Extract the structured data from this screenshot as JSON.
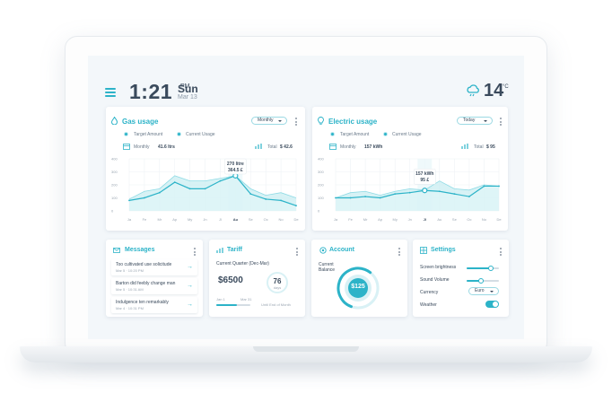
{
  "header": {
    "time": "1:21",
    "ampm": "PM",
    "day": "Sun",
    "date": "Mar 13",
    "temperature": "14",
    "temp_unit": "°C"
  },
  "gas": {
    "title": "Gas usage",
    "period": "Monthly",
    "legend": [
      "Target Amount",
      "Current Usage"
    ],
    "monthly_label": "Monthly",
    "monthly_value": "41.6 ltrs",
    "total_label": "Total",
    "total_value": "$ 42.6",
    "tooltip_line1": "270 litre",
    "tooltip_line2": "364.5 £",
    "y_ticks": [
      "400",
      "300",
      "200",
      "100",
      "0"
    ],
    "x_ticks": [
      "Ja",
      "Fe",
      "Mr",
      "Ap",
      "My",
      "Jn",
      "Jl",
      "Au",
      "Se",
      "Oc",
      "No",
      "De"
    ]
  },
  "electric": {
    "title": "Electric usage",
    "period": "Today",
    "legend": [
      "Target Amount",
      "Current Usage"
    ],
    "monthly_label": "Monthly",
    "monthly_value": "157 kWh",
    "total_label": "Total",
    "total_value": "$ 95",
    "tooltip_line1": "157 kWh",
    "tooltip_line2": "95 £",
    "y_ticks": [
      "400",
      "300",
      "200",
      "100",
      "0"
    ],
    "x_ticks": [
      "Ja",
      "Fe",
      "Mr",
      "Ap",
      "My",
      "Jn",
      "Jl",
      "Au",
      "Se",
      "Oc",
      "No",
      "De"
    ]
  },
  "chart_data": [
    {
      "type": "area",
      "title": "Gas usage",
      "categories": [
        "Ja",
        "Fe",
        "Mr",
        "Ap",
        "My",
        "Jn",
        "Jl",
        "Au",
        "Se",
        "Oc",
        "No",
        "De"
      ],
      "ylim": [
        0,
        400
      ],
      "series": [
        {
          "name": "Target Amount",
          "values": [
            90,
            150,
            170,
            270,
            230,
            230,
            250,
            270,
            170,
            120,
            140,
            100
          ]
        },
        {
          "name": "Current Usage",
          "values": [
            80,
            100,
            140,
            220,
            170,
            170,
            230,
            270,
            130,
            90,
            80,
            40
          ]
        }
      ]
    },
    {
      "type": "area",
      "title": "Electric usage",
      "categories": [
        "Ja",
        "Fe",
        "Mr",
        "Ap",
        "My",
        "Jn",
        "Jl",
        "Au",
        "Se",
        "Oc",
        "No",
        "De"
      ],
      "ylim": [
        0,
        400
      ],
      "series": [
        {
          "name": "Target Amount",
          "values": [
            100,
            140,
            150,
            120,
            150,
            170,
            160,
            230,
            170,
            160,
            200,
            190
          ]
        },
        {
          "name": "Current Usage",
          "values": [
            100,
            100,
            110,
            100,
            130,
            140,
            157,
            150,
            130,
            110,
            190,
            190
          ]
        }
      ]
    }
  ],
  "messages": {
    "title": "Messages",
    "items": [
      {
        "text": "Too cultivated use solicitude",
        "time": "Mar 5 · 10:20 PM"
      },
      {
        "text": "Barton did feebly change man",
        "time": "Mar 5 · 10:31 AM"
      },
      {
        "text": "Indulgence ten remarkably",
        "time": "Mar 4 · 10:31 PM"
      }
    ]
  },
  "tariff": {
    "title": "Tariff",
    "quarter": "Current Quarter (Dec-Mar)",
    "amount": "$6500",
    "days": "76",
    "days_unit": "days",
    "start": "Jan 1",
    "end": "Mar 31",
    "until": "Until End of Month",
    "progress": 0.6
  },
  "account": {
    "title": "Account",
    "balance_label": "Current Balance",
    "balance": "$125",
    "balance_fraction": 0.55
  },
  "settings": {
    "title": "Settings",
    "brightness_label": "Screen brightness",
    "brightness": 0.75,
    "volume_label": "Sound Volume",
    "volume": 0.45,
    "currency_label": "Currency",
    "currency": "Euro",
    "weather_label": "Weather",
    "weather_on": true
  },
  "colors": {
    "accent": "#2cb3c8",
    "accent_light": "#bfe9ef",
    "text": "#3a4a5c"
  }
}
